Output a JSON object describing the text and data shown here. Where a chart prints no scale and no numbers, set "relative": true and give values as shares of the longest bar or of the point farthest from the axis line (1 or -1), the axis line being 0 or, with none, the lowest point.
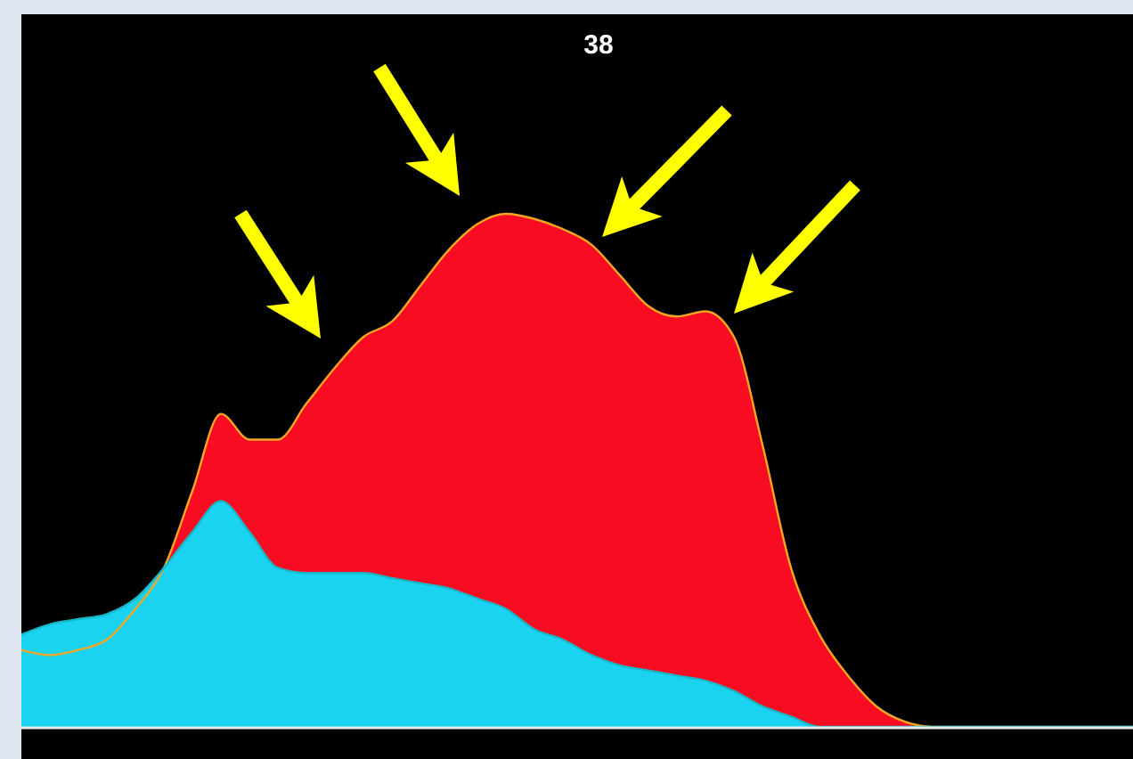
{
  "chart_data": {
    "type": "area",
    "title": "38",
    "relative": true,
    "categories": [
      null,
      null,
      null,
      null,
      null,
      null,
      null,
      null,
      null,
      null,
      null,
      null,
      null,
      null,
      null,
      null,
      null,
      null,
      null,
      null,
      null,
      null,
      null,
      null,
      null,
      null,
      null,
      null,
      null,
      null,
      null,
      null,
      null,
      null,
      null,
      null,
      null,
      null,
      null,
      null
    ],
    "series": [
      {
        "color": "#f80c22",
        "values": [
          0.15,
          0.14,
          0.15,
          0.17,
          0.23,
          0.31,
          0.46,
          0.61,
          0.56,
          0.56,
          0.63,
          0.7,
          0.76,
          0.79,
          0.86,
          0.93,
          0.98,
          1,
          0.99,
          0.97,
          0.94,
          0.88,
          0.82,
          0.8,
          0.81,
          0.76,
          0.55,
          0.31,
          0.18,
          0.1,
          0.04,
          0.01,
          0,
          0,
          0,
          0,
          0,
          0,
          0,
          0
        ]
      },
      {
        "color": "#1ad3f0",
        "values": [
          0.18,
          0.2,
          0.21,
          0.22,
          0.25,
          0.31,
          0.38,
          0.44,
          0.38,
          0.31,
          0.3,
          0.3,
          0.3,
          0.29,
          0.28,
          0.27,
          0.25,
          0.23,
          0.19,
          0.17,
          0.14,
          0.12,
          0.11,
          0.1,
          0.09,
          0.07,
          0.04,
          0.02,
          0,
          0,
          0,
          0,
          0,
          0,
          0,
          0,
          0,
          0,
          0,
          0
        ]
      }
    ],
    "grid": false
  }
}
